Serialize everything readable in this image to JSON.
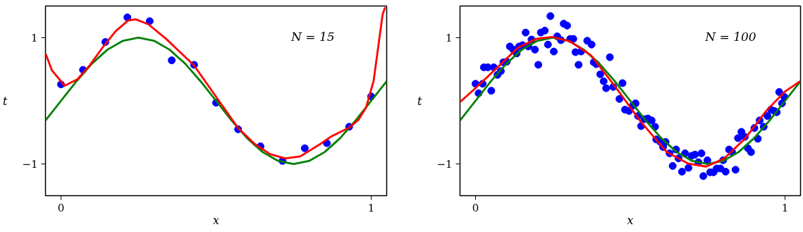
{
  "chart_data": [
    {
      "type": "scatter",
      "xlabel": "x",
      "ylabel": "t",
      "annotations": [
        "N = 15"
      ],
      "xlim": [
        -0.05,
        1.05
      ],
      "ylim": [
        -1.5,
        1.5
      ],
      "xticks": [
        0,
        1
      ],
      "yticks": [
        -1,
        1
      ],
      "grid": false,
      "series": [
        {
          "marker": "circle",
          "color": "#0000ff",
          "x": [
            0,
            0.071,
            0.143,
            0.214,
            0.286,
            0.357,
            0.429,
            0.5,
            0.571,
            0.643,
            0.714,
            0.786,
            0.857,
            0.929,
            1.0
          ],
          "values": [
            0.26,
            0.49,
            0.93,
            1.32,
            1.26,
            0.64,
            0.57,
            -0.03,
            -0.45,
            -0.72,
            -0.95,
            -0.75,
            -0.67,
            -0.41,
            0.07
          ]
        },
        {
          "type": "line",
          "line_style": "solid",
          "color": "#008000",
          "x": [
            -0.05,
            0,
            0.05,
            0.1,
            0.15,
            0.2,
            0.25,
            0.3,
            0.35,
            0.4,
            0.45,
            0.5,
            0.55,
            0.6,
            0.65,
            0.7,
            0.75,
            0.8,
            0.85,
            0.9,
            0.95,
            1.0,
            1.05
          ],
          "values": [
            -0.31,
            0,
            0.31,
            0.59,
            0.81,
            0.95,
            1,
            0.95,
            0.81,
            0.59,
            0.31,
            0,
            -0.31,
            -0.59,
            -0.81,
            -0.95,
            -1,
            -0.95,
            -0.81,
            -0.59,
            -0.31,
            0,
            0.31
          ]
        },
        {
          "type": "line",
          "line_style": "solid",
          "color": "#ff0000",
          "x": [
            -0.049,
            -0.029,
            0.012,
            0.053,
            0.094,
            0.135,
            0.176,
            0.216,
            0.241,
            0.282,
            0.339,
            0.38,
            0.429,
            0.502,
            0.571,
            0.624,
            0.673,
            0.722,
            0.771,
            0.837,
            0.869,
            0.927,
            0.959,
            0.984,
            1.008,
            1.024,
            1.037,
            1.045
          ],
          "values": [
            0.74,
            0.48,
            0.24,
            0.34,
            0.57,
            0.85,
            1.1,
            1.27,
            1.29,
            1.21,
            0.98,
            0.79,
            0.56,
            0.05,
            -0.43,
            -0.68,
            -0.84,
            -0.91,
            -0.88,
            -0.68,
            -0.57,
            -0.43,
            -0.3,
            -0.1,
            0.32,
            0.9,
            1.37,
            1.48
          ]
        }
      ]
    },
    {
      "type": "scatter",
      "xlabel": "x",
      "ylabel": "t",
      "annotations": [
        "N = 100"
      ],
      "xlim": [
        -0.05,
        1.05
      ],
      "ylim": [
        -1.5,
        1.5
      ],
      "xticks": [
        0,
        1
      ],
      "yticks": [
        -1,
        1
      ],
      "grid": false,
      "series": [
        {
          "marker": "circle",
          "color": "#0000ff",
          "x": [
            0.0,
            0.01,
            0.023,
            0.027,
            0.04,
            0.051,
            0.059,
            0.071,
            0.082,
            0.09,
            0.101,
            0.111,
            0.122,
            0.133,
            0.141,
            0.152,
            0.162,
            0.171,
            0.181,
            0.192,
            0.203,
            0.211,
            0.224,
            0.234,
            0.242,
            0.253,
            0.264,
            0.276,
            0.285,
            0.296,
            0.306,
            0.316,
            0.323,
            0.333,
            0.341,
            0.361,
            0.375,
            0.382,
            0.39,
            0.403,
            0.414,
            0.422,
            0.434,
            0.445,
            0.465,
            0.475,
            0.483,
            0.496,
            0.507,
            0.517,
            0.525,
            0.535,
            0.546,
            0.557,
            0.569,
            0.58,
            0.584,
            0.597,
            0.606,
            0.614,
            0.627,
            0.637,
            0.648,
            0.656,
            0.667,
            0.677,
            0.688,
            0.698,
            0.709,
            0.72,
            0.73,
            0.736,
            0.749,
            0.758,
            0.769,
            0.779,
            0.791,
            0.8,
            0.808,
            0.819,
            0.829,
            0.84,
            0.848,
            0.859,
            0.87,
            0.88,
            0.89,
            0.901,
            0.912,
            0.918,
            0.931,
            0.943,
            0.954,
            0.965,
            0.973,
            0.981,
            0.99,
            0.998
          ],
          "values": [
            0.27,
            0.12,
            0.27,
            0.53,
            0.53,
            0.16,
            0.53,
            0.41,
            0.47,
            0.61,
            0.62,
            0.86,
            0.81,
            0.75,
            0.86,
            0.88,
            1.08,
            0.86,
            0.97,
            0.81,
            0.57,
            1.08,
            1.11,
            0.89,
            1.34,
            0.78,
            1.02,
            0.96,
            1.22,
            1.19,
            0.98,
            0.98,
            0.77,
            0.57,
            0.78,
            0.95,
            0.89,
            0.61,
            0.58,
            0.42,
            0.31,
            0.2,
            0.69,
            0.22,
            0.03,
            0.28,
            -0.14,
            -0.16,
            -0.08,
            -0.04,
            -0.24,
            -0.4,
            -0.29,
            -0.28,
            -0.31,
            -0.41,
            -0.61,
            -0.65,
            -0.73,
            -0.65,
            -0.83,
            -1.03,
            -0.77,
            -0.91,
            -1.12,
            -0.83,
            -1.06,
            -0.87,
            -0.85,
            -0.97,
            -0.83,
            -1.19,
            -0.94,
            -1.13,
            -1.13,
            -1.07,
            -1.07,
            -0.94,
            -1.12,
            -0.77,
            -0.81,
            -1.09,
            -0.59,
            -0.49,
            -0.57,
            -0.75,
            -0.81,
            -0.43,
            -0.6,
            -0.31,
            -0.41,
            -0.24,
            -0.14,
            -0.16,
            -0.18,
            0.14,
            -0.04,
            0.06
          ]
        },
        {
          "type": "line",
          "line_style": "solid",
          "color": "#008000",
          "x": [
            -0.05,
            0,
            0.05,
            0.1,
            0.15,
            0.2,
            0.25,
            0.3,
            0.35,
            0.4,
            0.45,
            0.5,
            0.55,
            0.6,
            0.65,
            0.7,
            0.75,
            0.8,
            0.85,
            0.9,
            0.95,
            1.0,
            1.05
          ],
          "values": [
            -0.31,
            0,
            0.31,
            0.59,
            0.81,
            0.95,
            1,
            0.95,
            0.81,
            0.59,
            0.31,
            0,
            -0.31,
            -0.59,
            -0.81,
            -0.95,
            -1,
            -0.95,
            -0.81,
            -0.59,
            -0.31,
            0,
            0.31
          ]
        },
        {
          "type": "line",
          "line_style": "solid",
          "color": "#ff0000",
          "x": [
            -0.05,
            0,
            0.069,
            0.137,
            0.196,
            0.247,
            0.306,
            0.373,
            0.449,
            0.534,
            0.618,
            0.686,
            0.745,
            0.804,
            0.872,
            0.939,
            0.998,
            1.049
          ],
          "values": [
            -0.02,
            0.2,
            0.52,
            0.84,
            0.98,
            1.01,
            0.94,
            0.72,
            0.24,
            -0.33,
            -0.81,
            -0.99,
            -1.04,
            -0.91,
            -0.59,
            -0.16,
            0.14,
            0.31
          ]
        }
      ]
    }
  ]
}
